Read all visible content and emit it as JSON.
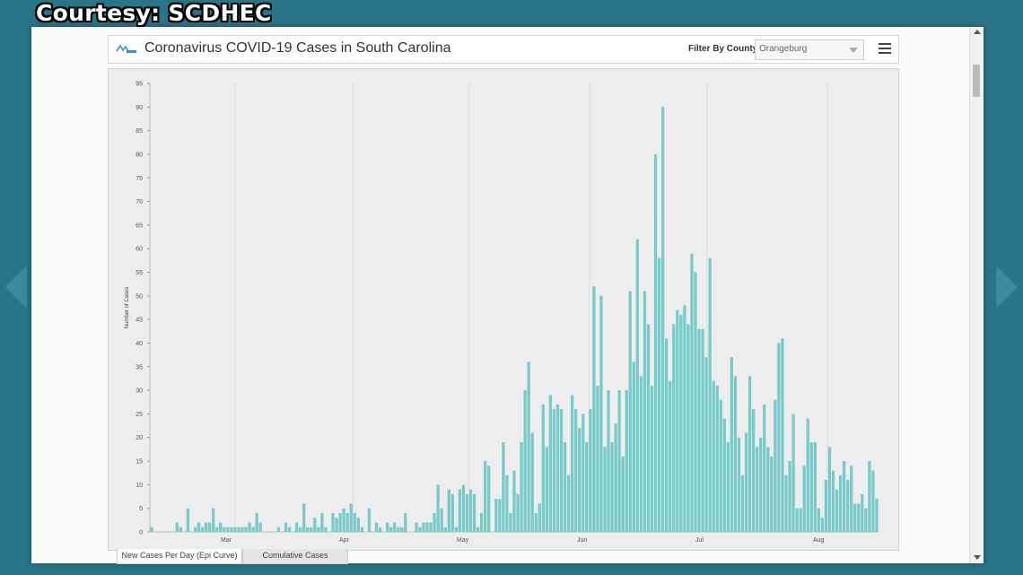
{
  "credit": "Courtesy: SCDHEC",
  "header": {
    "title": "Coronavirus COVID-19 Cases in South Carolina",
    "filter_label": "Filter By County",
    "county_selected": "Orangeburg",
    "logo_icon": "scdhec-logo-icon",
    "menu_icon": "hamburger-menu-icon"
  },
  "tabs": [
    {
      "label": "New Cases Per Day (Epi Curve)",
      "active": true
    },
    {
      "label": "Cumulative Cases",
      "active": false
    }
  ],
  "colors": {
    "bar": "#78cbc8",
    "background": "#2a7488"
  },
  "chart_data": {
    "type": "bar",
    "ylabel": "Number of Cases",
    "ylim": [
      0,
      95
    ],
    "yticks": [
      0,
      5,
      10,
      15,
      20,
      25,
      30,
      35,
      40,
      45,
      50,
      55,
      60,
      65,
      70,
      75,
      80,
      85,
      90,
      95
    ],
    "month_labels": [
      "Mar",
      "Apr",
      "May",
      "Jun",
      "Jul",
      "Aug"
    ],
    "values": [
      1,
      0,
      0,
      0,
      0,
      0,
      0,
      2,
      1,
      0,
      5,
      0,
      1,
      2,
      1,
      2,
      2,
      5,
      1,
      2,
      1,
      1,
      1,
      1,
      1,
      1,
      1,
      2,
      1,
      4,
      2,
      0,
      0,
      0,
      0,
      1,
      0,
      2,
      1,
      0,
      2,
      1,
      6,
      1,
      1,
      3,
      1,
      4,
      1,
      0,
      4,
      3,
      4,
      5,
      4,
      6,
      4,
      3,
      1,
      0,
      5,
      0,
      2,
      1,
      0,
      2,
      1,
      2,
      1,
      1,
      4,
      0,
      0,
      2,
      1,
      2,
      2,
      2,
      4,
      10,
      5,
      1,
      9,
      8,
      1,
      9,
      10,
      8,
      9,
      8,
      1,
      4,
      15,
      14,
      0,
      7,
      7,
      19,
      12,
      4,
      13,
      8,
      19,
      30,
      36,
      21,
      4,
      6,
      27,
      18,
      29,
      26,
      27,
      26,
      19,
      12,
      29,
      26,
      22,
      25,
      19,
      26,
      52,
      31,
      50,
      18,
      30,
      19,
      23,
      30,
      16,
      30,
      51,
      36,
      62,
      33,
      51,
      44,
      31,
      80,
      58,
      90,
      41,
      32,
      44,
      47,
      46,
      48,
      44,
      59,
      55,
      43,
      43,
      37,
      58,
      32,
      31,
      28,
      24,
      19,
      37,
      33,
      20,
      12,
      21,
      33,
      26,
      18,
      20,
      27,
      18,
      16,
      28,
      40,
      41,
      12,
      15,
      25,
      5,
      5,
      14,
      24,
      19,
      19,
      5,
      3,
      11,
      18,
      13,
      9,
      12,
      15,
      11,
      14,
      6,
      6,
      8,
      5,
      15,
      13,
      7
    ],
    "start_index_note": ""
  }
}
